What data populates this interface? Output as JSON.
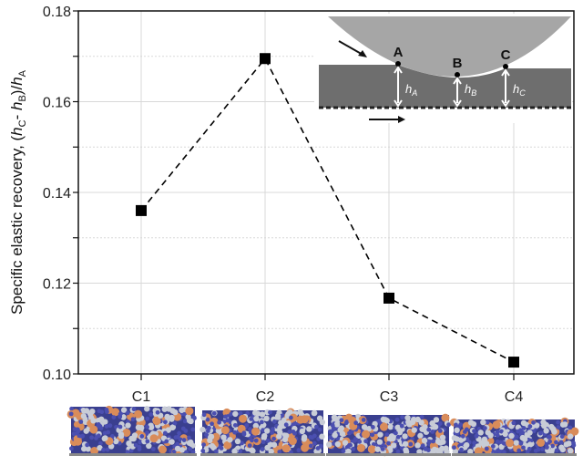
{
  "chart_data": {
    "type": "line",
    "categories": [
      "C1",
      "C2",
      "C3",
      "C4"
    ],
    "values": [
      0.136,
      0.1695,
      0.1167,
      0.1026
    ],
    "ylabel": {
      "main": "Specific elastic recovery, (",
      "h1": "h",
      "s1": "C",
      "mid": "- ",
      "h2": "h",
      "s2": "B",
      "slash": ")/",
      "h3": "h",
      "s3": "A"
    },
    "ylim": [
      0.1,
      0.18
    ],
    "yticks": [
      "0.10",
      "0.12",
      "0.14",
      "0.16",
      "0.18"
    ],
    "grid": true,
    "line_style": "dashed",
    "marker": "square",
    "colors": {
      "line": "#000000",
      "grid": "#d8d8d8"
    }
  },
  "inset": {
    "points": [
      "A",
      "B",
      "C"
    ],
    "heights": [
      {
        "h": "h",
        "sub": "A"
      },
      {
        "h": "h",
        "sub": "B"
      },
      {
        "h": "h",
        "sub": "C"
      }
    ],
    "colors": {
      "indenter": "#a6a6a6",
      "layer": "#6e6e6e"
    }
  },
  "thumbnails": {
    "colors": {
      "blue": "#4b4fb0",
      "white": "#c8ccd6",
      "orange": "#d98c5a",
      "base": "#8a8a8a"
    }
  }
}
